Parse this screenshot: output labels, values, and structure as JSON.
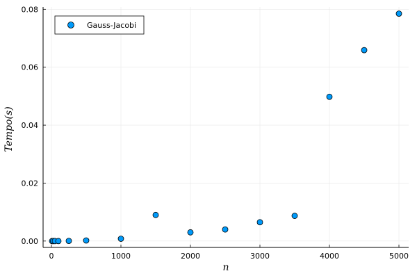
{
  "chart_data": {
    "type": "scatter",
    "xlabel": "n",
    "ylabel": "Tempo(s)",
    "xlim": [
      -120,
      5140
    ],
    "ylim": [
      -0.0022,
      0.0808
    ],
    "xticks": [
      0,
      1000,
      2000,
      3000,
      4000,
      5000
    ],
    "yticks": [
      0.0,
      0.02,
      0.04,
      0.06,
      0.08
    ],
    "xtick_labels": [
      "0",
      "1000",
      "2000",
      "3000",
      "4000",
      "5000"
    ],
    "ytick_labels": [
      "0.00",
      "0.02",
      "0.04",
      "0.06",
      "0.08"
    ],
    "grid": true,
    "legend_position": "top-left",
    "series": [
      {
        "name": "Gauss-Jacobi",
        "color": "#009AFA",
        "points": [
          {
            "x": 10,
            "y": 0.0
          },
          {
            "x": 25,
            "y": 0.0
          },
          {
            "x": 50,
            "y": 0.0
          },
          {
            "x": 100,
            "y": 0.0
          },
          {
            "x": 250,
            "y": 5e-05
          },
          {
            "x": 500,
            "y": 0.0002
          },
          {
            "x": 1000,
            "y": 0.0008
          },
          {
            "x": 1500,
            "y": 0.009
          },
          {
            "x": 2000,
            "y": 0.003
          },
          {
            "x": 2500,
            "y": 0.004
          },
          {
            "x": 3000,
            "y": 0.0065
          },
          {
            "x": 3500,
            "y": 0.0087
          },
          {
            "x": 4000,
            "y": 0.0498
          },
          {
            "x": 4500,
            "y": 0.0659
          },
          {
            "x": 5000,
            "y": 0.0785
          }
        ]
      }
    ]
  }
}
